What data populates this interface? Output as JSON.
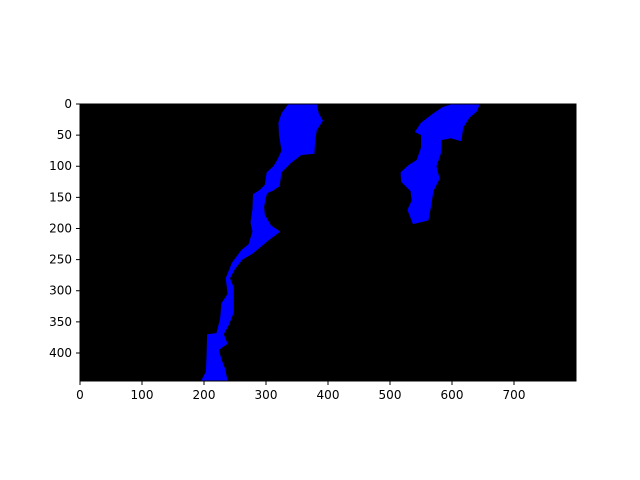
{
  "chart_data": {
    "type": "image",
    "background_color": "#000000",
    "fill_color": "#0000ff",
    "xlim": [
      0,
      800
    ],
    "ylim": [
      445,
      0
    ],
    "y_inverted": true,
    "x_ticks": [
      0,
      100,
      200,
      300,
      400,
      500,
      600,
      700
    ],
    "y_ticks": [
      0,
      50,
      100,
      150,
      200,
      250,
      300,
      350,
      400
    ],
    "x_tick_labels": [
      "0",
      "100",
      "200",
      "300",
      "400",
      "500",
      "600",
      "700"
    ],
    "y_tick_labels": [
      "0",
      "50",
      "100",
      "150",
      "200",
      "250",
      "300",
      "350",
      "400"
    ],
    "title": "",
    "xlabel": "",
    "ylabel": "",
    "grid": false,
    "legend": "none",
    "regions": [
      {
        "polygon": [
          [
            336,
            0
          ],
          [
            382,
            0
          ],
          [
            385,
            15
          ],
          [
            392,
            27
          ],
          [
            382,
            42
          ],
          [
            379,
            62
          ],
          [
            378,
            80
          ],
          [
            357,
            82
          ],
          [
            340,
            95
          ],
          [
            325,
            110
          ],
          [
            322,
            132
          ],
          [
            310,
            140
          ],
          [
            302,
            143
          ],
          [
            300,
            150
          ],
          [
            297,
            165
          ],
          [
            298,
            178
          ],
          [
            308,
            195
          ],
          [
            323,
            205
          ],
          [
            303,
            220
          ],
          [
            291,
            230
          ],
          [
            279,
            240
          ],
          [
            262,
            250
          ],
          [
            250,
            265
          ],
          [
            242,
            280
          ],
          [
            248,
            295
          ],
          [
            248,
            335
          ],
          [
            240,
            355
          ],
          [
            232,
            370
          ],
          [
            238,
            385
          ],
          [
            224,
            395
          ],
          [
            228,
            410
          ],
          [
            234,
            425
          ],
          [
            238,
            445
          ],
          [
            195,
            445
          ],
          [
            203,
            430
          ],
          [
            204,
            405
          ],
          [
            205,
            370
          ],
          [
            220,
            368
          ],
          [
            226,
            345
          ],
          [
            228,
            320
          ],
          [
            238,
            305
          ],
          [
            235,
            280
          ],
          [
            245,
            255
          ],
          [
            260,
            235
          ],
          [
            272,
            225
          ],
          [
            278,
            205
          ],
          [
            275,
            190
          ],
          [
            278,
            170
          ],
          [
            279,
            145
          ],
          [
            290,
            138
          ],
          [
            298,
            130
          ],
          [
            301,
            110
          ],
          [
            312,
            100
          ],
          [
            318,
            90
          ],
          [
            325,
            75
          ],
          [
            321,
            50
          ],
          [
            320,
            30
          ],
          [
            325,
            15
          ]
        ]
      },
      {
        "polygon": [
          [
            600,
            0
          ],
          [
            645,
            0
          ],
          [
            640,
            12
          ],
          [
            628,
            22
          ],
          [
            618,
            38
          ],
          [
            615,
            60
          ],
          [
            598,
            55
          ],
          [
            583,
            58
          ],
          [
            582,
            80
          ],
          [
            575,
            100
          ],
          [
            580,
            120
          ],
          [
            570,
            140
          ],
          [
            567,
            160
          ],
          [
            562,
            187
          ],
          [
            550,
            190
          ],
          [
            537,
            193
          ],
          [
            528,
            170
          ],
          [
            535,
            155
          ],
          [
            533,
            140
          ],
          [
            518,
            125
          ],
          [
            517,
            110
          ],
          [
            530,
            98
          ],
          [
            543,
            90
          ],
          [
            550,
            70
          ],
          [
            550,
            50
          ],
          [
            540,
            45
          ],
          [
            550,
            30
          ],
          [
            570,
            15
          ],
          [
            585,
            5
          ]
        ]
      }
    ]
  }
}
